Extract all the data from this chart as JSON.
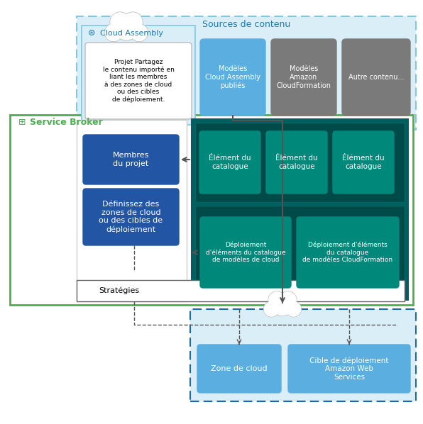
{
  "bg_color": "#ffffff",
  "sources_label": "Sources de contenu",
  "sources_label_color": "#1a7ab5",
  "cloud_assembly_label": "Cloud Assembly",
  "cloud_assembly_label_color": "#1a7ab5",
  "projet_text": "Projet Partagez\nle contenu importé en\nliant les membres\nà des zones de cloud\nou des cibles\nde déploiement.",
  "modeles_ca_publie": "Modèles\nCloud Assembly\npubliés",
  "modeles_amazon": "Modèles\nAmazon\nCloudFormation",
  "autre_contenu": "Autre contenu...",
  "service_broker_label": "Service Broker",
  "membres_text": "Membres\ndu projet",
  "definissez_text": "Définissez des\nzones de cloud\nou des cibles de\ndéploiement",
  "element_catalogue": "Élément du\ncatalogue",
  "deploiement_cloud": "Déploiement\nd'éléments du catalogue\nde modèles de cloud",
  "deploiement_cf": "Déploiement d'éléments\ndu catalogue\nde modèles CloudFormation",
  "strategies_text": "Stratégies",
  "zone_cloud_text": "Zone de cloud",
  "cible_text": "Cible de déploiement\nAmazon Web\nServices",
  "blue_medium": "#2255a4",
  "blue_light": "#5baee0",
  "green_border": "#4caf50",
  "gray_box": "#7a7a7a",
  "teal_outer": "#005f5f",
  "teal_inner": "#007070",
  "teal_elem": "#00897b",
  "white": "#ffffff",
  "dashed_blue": "#1a6aad",
  "arrow_color": "#555555",
  "sources_bg": "#daeef8",
  "sources_border": "#7ec8e3"
}
